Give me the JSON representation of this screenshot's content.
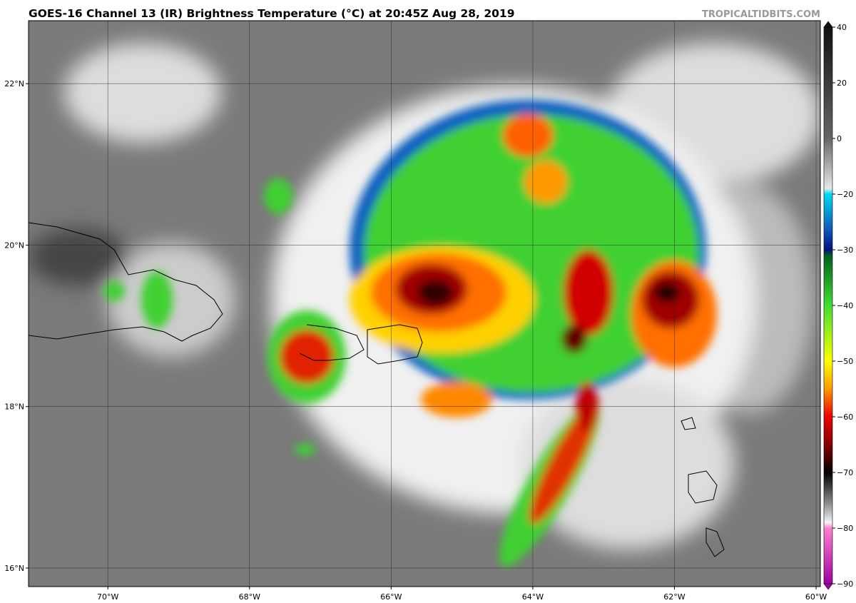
{
  "header": {
    "title": "GOES-16 Channel 13 (IR) Brightness Temperature (°C) at 20:45Z Aug 28, 2019",
    "watermark": "TROPICALTIDBITS.COM"
  },
  "map": {
    "xlim": [
      -71.12,
      -59.94
    ],
    "ylim": [
      15.77,
      22.78
    ],
    "xticks": [
      {
        "value": -70,
        "label": "70°W"
      },
      {
        "value": -68,
        "label": "68°W"
      },
      {
        "value": -66,
        "label": "66°W"
      },
      {
        "value": -64,
        "label": "64°W"
      },
      {
        "value": -62,
        "label": "62°W"
      },
      {
        "value": -60,
        "label": "60°W"
      }
    ],
    "yticks": [
      {
        "value": 22,
        "label": "22°N"
      },
      {
        "value": 20,
        "label": "20°N"
      },
      {
        "value": 18,
        "label": "18°N"
      },
      {
        "value": 16,
        "label": "16°N"
      }
    ]
  },
  "colorbar": {
    "range": [
      -90,
      40
    ],
    "ticks": [
      40,
      20,
      0,
      {
        "value": -20,
        "label": "−20"
      },
      {
        "value": -30,
        "label": "−30"
      },
      {
        "value": -40,
        "label": "−40"
      },
      {
        "value": -50,
        "label": "−50"
      },
      {
        "value": -60,
        "label": "−60"
      },
      {
        "value": -70,
        "label": "−70"
      },
      {
        "value": -80,
        "label": "−80"
      },
      {
        "value": -90,
        "label": "−90"
      }
    ]
  }
}
